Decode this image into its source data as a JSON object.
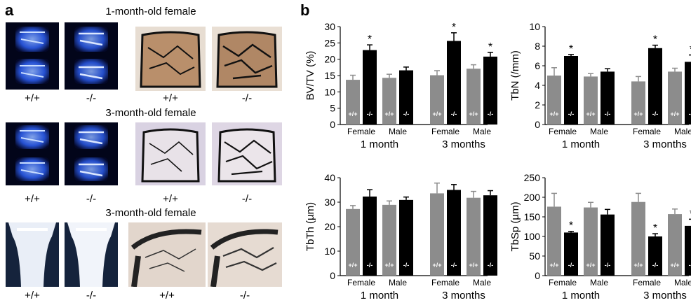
{
  "panel_a": {
    "letter": "a",
    "sections": [
      {
        "title": "1-month-old female",
        "labels": [
          "+/+",
          "-/-",
          "+/+",
          "-/-"
        ]
      },
      {
        "title": "3-month-old female",
        "labels": [
          "+/+",
          "-/-",
          "+/+",
          "-/-"
        ]
      },
      {
        "title": "3-month-old female",
        "labels": [
          "+/+",
          "-/-",
          "+/+",
          "-/-"
        ]
      }
    ]
  },
  "panel_b": {
    "letter": "b"
  },
  "colors": {
    "wt": "#8c8c8c",
    "ko": "#000000"
  },
  "chart_data": [
    {
      "type": "bar",
      "ylabel": "BV/TV (%)",
      "ylim": [
        0,
        30
      ],
      "yticks": [
        0,
        5,
        10,
        15,
        20,
        25,
        30
      ],
      "groups": [
        {
          "label": "1 month",
          "sexes": [
            "Female",
            "Male"
          ]
        },
        {
          "label": "3 months",
          "sexes": [
            "Female",
            "Male"
          ]
        }
      ],
      "bar_labels": [
        "+/+",
        "-/-",
        "+/+",
        "-/-",
        "+/+",
        "-/-",
        "+/+",
        "-/-"
      ],
      "values": [
        13.7,
        22.8,
        14.3,
        16.6,
        15.1,
        25.6,
        17.1,
        20.8
      ],
      "errors": [
        1.4,
        1.6,
        1.1,
        1.0,
        1.4,
        2.5,
        1.2,
        1.3
      ],
      "significant": [
        false,
        true,
        false,
        false,
        false,
        true,
        false,
        true
      ],
      "star": "*"
    },
    {
      "type": "bar",
      "ylabel": "TbN (/mm)",
      "ylim": [
        0,
        10
      ],
      "yticks": [
        0,
        2,
        4,
        6,
        8,
        10
      ],
      "groups": [
        {
          "label": "1 month",
          "sexes": [
            "Female",
            "Male"
          ]
        },
        {
          "label": "3 months",
          "sexes": [
            "Female",
            "Male"
          ]
        }
      ],
      "bar_labels": [
        "+/+",
        "-/-",
        "+/+",
        "-/-",
        "+/+",
        "-/-",
        "+/+",
        "-/-"
      ],
      "values": [
        5.0,
        7.0,
        4.9,
        5.4,
        4.4,
        7.8,
        5.4,
        6.4
      ],
      "errors": [
        0.8,
        0.15,
        0.3,
        0.3,
        0.5,
        0.3,
        0.35,
        0.7
      ],
      "significant": [
        false,
        true,
        false,
        false,
        false,
        true,
        false,
        true
      ],
      "star": "*"
    },
    {
      "type": "bar",
      "ylabel": "TbTh (µm)",
      "ylim": [
        0,
        40
      ],
      "yticks": [
        0,
        10,
        20,
        30,
        40
      ],
      "groups": [
        {
          "label": "1 month",
          "sexes": [
            "Female",
            "Male"
          ]
        },
        {
          "label": "3 months",
          "sexes": [
            "Female",
            "Male"
          ]
        }
      ],
      "bar_labels": [
        "+/+",
        "-/-",
        "+/+",
        "-/-",
        "+/+",
        "-/-",
        "+/+",
        "-/-"
      ],
      "values": [
        27.2,
        32.3,
        28.9,
        30.9,
        33.6,
        35.0,
        31.8,
        32.8
      ],
      "errors": [
        1.4,
        2.8,
        1.6,
        1.2,
        4.2,
        2.2,
        2.6,
        1.9
      ],
      "significant": [
        false,
        false,
        false,
        false,
        false,
        false,
        false,
        false
      ],
      "star": "*"
    },
    {
      "type": "bar",
      "ylabel": "TbSp (µm)",
      "ylim": [
        0,
        250
      ],
      "yticks": [
        0,
        50,
        100,
        150,
        200,
        250
      ],
      "groups": [
        {
          "label": "1 month",
          "sexes": [
            "Female",
            "Male"
          ]
        },
        {
          "label": "3 months",
          "sexes": [
            "Female",
            "Male"
          ]
        }
      ],
      "bar_labels": [
        "+/+",
        "-/-",
        "+/+",
        "-/-",
        "+/+",
        "-/-",
        "+/+",
        "-/-"
      ],
      "values": [
        176,
        110,
        174,
        156,
        188,
        100,
        157,
        127
      ],
      "errors": [
        34,
        3,
        13,
        13,
        22,
        7,
        13,
        17
      ],
      "significant": [
        false,
        true,
        false,
        false,
        false,
        true,
        false,
        true
      ],
      "star": "*"
    }
  ]
}
